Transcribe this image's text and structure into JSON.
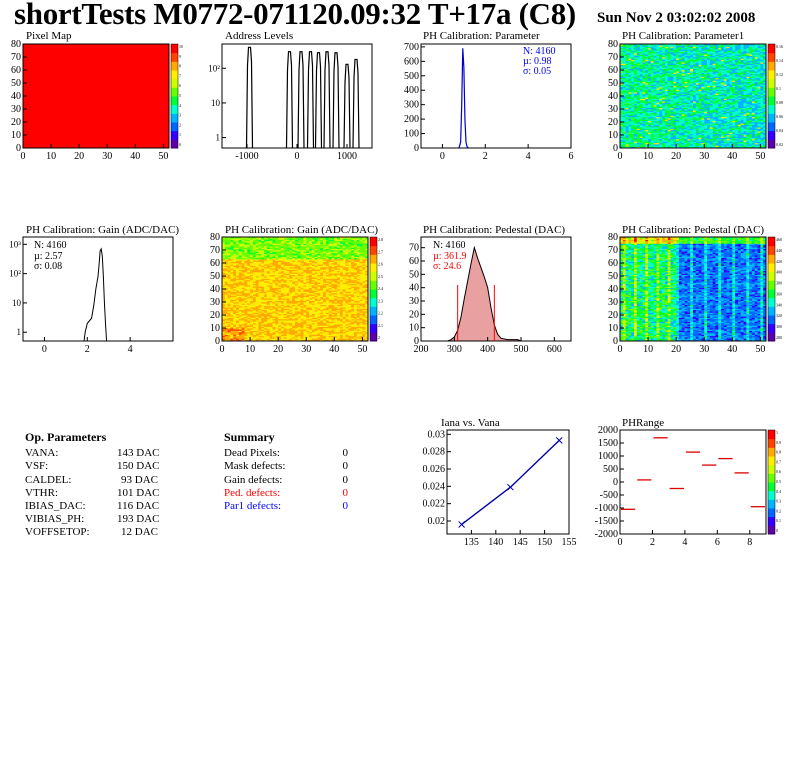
{
  "header": {
    "title": "shortTests M0772-071120.09:32 T+17a (C8)",
    "date": "Sun Nov  2 03:02:02 2008"
  },
  "colors": {
    "hist_line": "#000000",
    "stat_blue": "#0000ff",
    "stat_red": "#ff0000",
    "pixelmap_fill": "#ff0000",
    "iana_line": "#0000aa"
  },
  "palette": [
    "#5e00a8",
    "#3300ff",
    "#0066ff",
    "#00b4ff",
    "#00ffcc",
    "#00ff33",
    "#66ff00",
    "#ccff00",
    "#ffee00",
    "#ffaa00",
    "#ff4400",
    "#ff0000"
  ],
  "panels": {
    "pixel_map": {
      "title": "Pixel Map"
    },
    "address_levels": {
      "title": "Address Levels"
    },
    "ph_param": {
      "title": "PH Calibration: Parameter",
      "stats": {
        "n": "N: 4160",
        "mu": "µ: 0.98",
        "sigma": "σ: 0.05"
      }
    },
    "ph_param1": {
      "title": "PH Calibration: Parameter1"
    },
    "gain_hist": {
      "title": "PH Calibration: Gain (ADC/DAC)",
      "stats": {
        "n": "N: 4160",
        "mu": "µ: 2.57",
        "sigma": "σ: 0.08"
      }
    },
    "gain_map": {
      "title": "PH Calibration: Gain (ADC/DAC)"
    },
    "pedestal_hist": {
      "title": "PH Calibration: Pedestal (DAC)",
      "stats": {
        "n": "N: 4160",
        "mu": "µ: 361.9",
        "sigma": "σ: 24.6"
      }
    },
    "pedestal_map": {
      "title": "PH Calibration: Pedestal (DAC)"
    },
    "iana": {
      "title": "Iana vs. Vana"
    },
    "phrange": {
      "title": "PHRange"
    }
  },
  "op_params": {
    "title": "Op. Parameters",
    "rows": [
      {
        "name": "VANA:",
        "value": "143 DAC"
      },
      {
        "name": "VSF:",
        "value": "150 DAC"
      },
      {
        "name": "CALDEL:",
        "value": "93 DAC"
      },
      {
        "name": "VTHR:",
        "value": "101 DAC"
      },
      {
        "name": "IBIAS_DAC:",
        "value": "116 DAC"
      },
      {
        "name": "VIBIAS_PH:",
        "value": "193 DAC"
      },
      {
        "name": "VOFFSETOP:",
        "value": "12 DAC"
      }
    ]
  },
  "summary": {
    "title": "Summary",
    "rows": [
      {
        "name": "Dead Pixels:",
        "value": "0",
        "color": "black"
      },
      {
        "name": "Mask defects:",
        "value": "0",
        "color": "black"
      },
      {
        "name": "Gain defects:",
        "value": "0",
        "color": "black"
      },
      {
        "name": "Ped. defects:",
        "value": "0",
        "color": "red"
      },
      {
        "name": "Par1 defects:",
        "value": "0",
        "color": "blue"
      }
    ]
  },
  "chart_data": [
    {
      "id": "pixel_map",
      "type": "heatmap",
      "title": "Pixel Map",
      "xlim": [
        0,
        52
      ],
      "ylim": [
        0,
        80
      ],
      "xticks": [
        "0",
        "10",
        "20",
        "30",
        "40",
        "50"
      ],
      "yticks": [
        "0",
        "10",
        "20",
        "30",
        "40",
        "50",
        "60",
        "70",
        "80"
      ],
      "zticks": [
        "10",
        "9",
        "8",
        "7",
        "6",
        "5",
        "4",
        "3",
        "2",
        "1",
        "0"
      ],
      "value": 10
    },
    {
      "id": "address_levels",
      "type": "bar",
      "title": "Address Levels",
      "xlim": [
        -1500,
        1500
      ],
      "yscale": "log",
      "xticks": [
        "-1000",
        "0",
        "1000"
      ],
      "yticks": [
        "1",
        "10",
        "10^2"
      ],
      "peaks": [
        -950,
        -150,
        80,
        270,
        430,
        600,
        780,
        1000,
        1180
      ],
      "peak_heights": [
        400,
        300,
        300,
        300,
        280,
        300,
        280,
        130,
        180
      ]
    },
    {
      "id": "ph_param",
      "type": "bar",
      "title": "PH Calibration: Parameter",
      "xlim": [
        -1,
        6
      ],
      "ylim": [
        0,
        720
      ],
      "xticks": [
        "0",
        "2",
        "4",
        "6"
      ],
      "yticks": [
        "0",
        "100",
        "200",
        "300",
        "400",
        "500",
        "600",
        "700"
      ],
      "x": [
        0.78,
        0.85,
        0.9,
        0.95,
        1.0,
        1.05,
        1.1,
        1.15,
        1.2
      ],
      "values": [
        5,
        40,
        300,
        690,
        560,
        200,
        40,
        8,
        2
      ]
    },
    {
      "id": "ph_param1",
      "type": "heatmap",
      "title": "PH Calibration: Parameter1",
      "xlim": [
        0,
        52
      ],
      "ylim": [
        0,
        80
      ],
      "xticks": [
        "0",
        "10",
        "20",
        "30",
        "40",
        "50"
      ],
      "yticks": [
        "0",
        "10",
        "20",
        "30",
        "40",
        "50",
        "60",
        "70",
        "80"
      ],
      "zticks": [
        "0.16",
        "0.14",
        "0.12",
        "0.1",
        "0.08",
        "0.06",
        "0.04",
        "0.02"
      ]
    },
    {
      "id": "gain_hist",
      "type": "bar",
      "title": "PH Calibration: Gain (ADC/DAC)",
      "xlim": [
        -1,
        6
      ],
      "yscale": "log",
      "xticks": [
        "0",
        "2",
        "4"
      ],
      "yticks": [
        "1",
        "10",
        "10^2",
        "10^3"
      ],
      "x": [
        1.9,
        2.0,
        2.2,
        2.3,
        2.4,
        2.5,
        2.55,
        2.6,
        2.65,
        2.7,
        2.75,
        2.8,
        2.85
      ],
      "values": [
        1,
        2,
        3,
        8,
        30,
        80,
        200,
        600,
        700,
        400,
        80,
        10,
        2
      ]
    },
    {
      "id": "gain_map",
      "type": "heatmap",
      "title": "PH Calibration: Gain (ADC/DAC)",
      "xlim": [
        0,
        52
      ],
      "ylim": [
        0,
        80
      ],
      "xticks": [
        "0",
        "10",
        "20",
        "30",
        "40",
        "50"
      ],
      "yticks": [
        "0",
        "10",
        "20",
        "30",
        "40",
        "50",
        "60",
        "70",
        "80"
      ],
      "zticks": [
        "2.8",
        "2.7",
        "2.6",
        "2.5",
        "2.4",
        "2.3",
        "2.2",
        "2.1",
        "2"
      ]
    },
    {
      "id": "pedestal_hist",
      "type": "bar",
      "title": "PH Calibration: Pedestal (DAC)",
      "xlim": [
        200,
        650
      ],
      "ylim": [
        0,
        78
      ],
      "xticks": [
        "200",
        "300",
        "400",
        "500",
        "600"
      ],
      "yticks": [
        "0",
        "10",
        "20",
        "30",
        "40",
        "50",
        "60",
        "70"
      ],
      "x": [
        290,
        300,
        310,
        320,
        330,
        340,
        350,
        360,
        370,
        380,
        390,
        400,
        410,
        420,
        430,
        440,
        460,
        490
      ],
      "values": [
        1,
        3,
        8,
        18,
        32,
        45,
        58,
        70,
        62,
        55,
        48,
        40,
        25,
        12,
        5,
        2,
        1,
        1
      ],
      "cut_lines": [
        310,
        420
      ]
    },
    {
      "id": "pedestal_map",
      "type": "heatmap",
      "title": "PH Calibration: Pedestal (DAC)",
      "xlim": [
        0,
        52
      ],
      "ylim": [
        0,
        80
      ],
      "xticks": [
        "0",
        "10",
        "20",
        "30",
        "40",
        "50"
      ],
      "yticks": [
        "0",
        "10",
        "20",
        "30",
        "40",
        "50",
        "60",
        "70",
        "80"
      ],
      "zticks": [
        "460",
        "440",
        "420",
        "400",
        "380",
        "360",
        "340",
        "320",
        "300",
        "280"
      ]
    },
    {
      "id": "iana",
      "type": "line",
      "title": "Iana vs. Vana",
      "xlim": [
        130,
        155
      ],
      "ylim": [
        0.0185,
        0.0305
      ],
      "xticks": [
        "135",
        "140",
        "145",
        "150",
        "155"
      ],
      "yticks": [
        "0.02",
        "0.022",
        "0.024",
        "0.026",
        "0.028",
        "0.03"
      ],
      "x": [
        133,
        143,
        153
      ],
      "y": [
        0.0196,
        0.0239,
        0.0293
      ]
    },
    {
      "id": "phrange",
      "type": "scatter",
      "title": "PHRange",
      "xlim": [
        0,
        9
      ],
      "ylim": [
        -2000,
        2000
      ],
      "xticks": [
        "0",
        "2",
        "4",
        "6",
        "8"
      ],
      "yticks": [
        "2000",
        "1500",
        "1000",
        "500",
        "0",
        "-500",
        "-1000",
        "-1500",
        "-2000"
      ],
      "zticks": [
        "1",
        "0.9",
        "0.8",
        "0.7",
        "0.6",
        "0.5",
        "0.4",
        "0.3",
        "0.2",
        "0.1",
        "0"
      ],
      "x": [
        0.5,
        1.5,
        2.5,
        3.5,
        4.5,
        5.5,
        6.5,
        7.5,
        8.5
      ],
      "y": [
        -1050,
        80,
        1700,
        -250,
        1150,
        650,
        900,
        350,
        -950
      ]
    }
  ]
}
